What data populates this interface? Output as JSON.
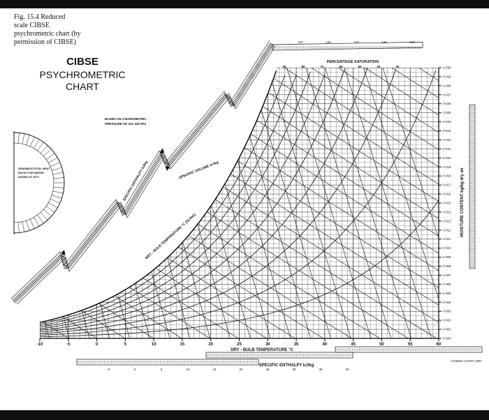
{
  "caption": [
    "Fig. 15.4  Reduced",
    "scale CIBSE",
    "psychrometric chart (by",
    "permission of CIBSE)"
  ],
  "title": [
    "CIBSE",
    "PSYCHROMETRIC",
    "CHART"
  ],
  "pressure_note": [
    "BASED ON A BAROMETRIC",
    "PRESSURE OF 101·325 kPa"
  ],
  "ratio_note": [
    "SENSIBLE/TOTAL HEAT",
    "RATIO FOR WATER",
    "ADDED AT 30°C"
  ],
  "percentage_saturation": {
    "label": "PERCENTAGE SATURATION",
    "ticks": [
      90,
      80,
      70,
      60,
      50,
      40,
      30
    ]
  },
  "dry_bulb": {
    "label": "DRY - BULB  TEMPERATURE  °C",
    "ticks": [
      -10,
      -5,
      0,
      5,
      10,
      15,
      20,
      25,
      30,
      35,
      40,
      45,
      50,
      55,
      60
    ]
  },
  "moisture": {
    "label": "MOISTURE  CONTENT  kg/kg dry air",
    "ticks": [
      "0·000",
      "0·001",
      "0·002",
      "0·003",
      "0·004",
      "0·005",
      "0·006",
      "0·007",
      "0·008",
      "0·009",
      "0·010",
      "0·011",
      "0·012",
      "0·013",
      "0·014",
      "0·015",
      "0·016",
      "0·017",
      "0·018",
      "0·019",
      "0·020",
      "0·021",
      "0·022",
      "0·023",
      "0·024",
      "0·025",
      "0·026",
      "0·027",
      "0·028",
      "0·029",
      "0·030"
    ]
  },
  "enthalpy_left_label": "SPECIFIC  ENTHALPY  kJ/kg",
  "enthalpy_top_ticks": [
    120,
    125,
    130,
    135,
    140
  ],
  "enthalpy_bottom": {
    "label": "SPECIFIC  ENTHALPY  kJ/kg",
    "ticks": [
      -5,
      0,
      5,
      10,
      15,
      20,
      25,
      30,
      35,
      40
    ]
  },
  "specific_volume_label": "SPECIFIC  VOLUME  m³/kg",
  "wet_bulb_label": "WET - BULB  TEMPERATURE  °C  (SLING)",
  "copyright": "©CIBSE CHART 1987"
}
